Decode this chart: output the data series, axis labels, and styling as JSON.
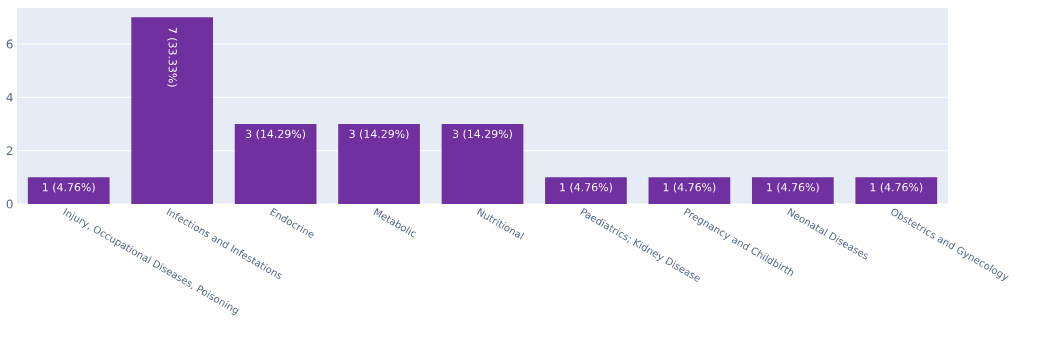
{
  "chart_data": {
    "type": "bar",
    "categories": [
      "Injury, Occupational Diseases, Poisoning",
      "Infections and Infestations",
      "Endocrine",
      "Metabolic",
      "Nutritional",
      "Paediatrics; Kidney Disease",
      "Pregnancy and Childbirth",
      "Neonatal Diseases",
      "Obstetrics and Gynecology"
    ],
    "values": [
      1,
      7,
      3,
      3,
      3,
      1,
      1,
      1,
      1
    ],
    "value_labels": [
      "1 (4.76%)",
      "7 (33.33%)",
      "3 (14.29%)",
      "3 (14.29%)",
      "3 (14.29%)",
      "1 (4.76%)",
      "1 (4.76%)",
      "1 (4.76%)",
      "1 (4.76%)"
    ],
    "color": "#7030a0",
    "ylim": [
      0,
      7.35
    ],
    "yticks": [
      0,
      2,
      4,
      6
    ],
    "grid": "y"
  }
}
